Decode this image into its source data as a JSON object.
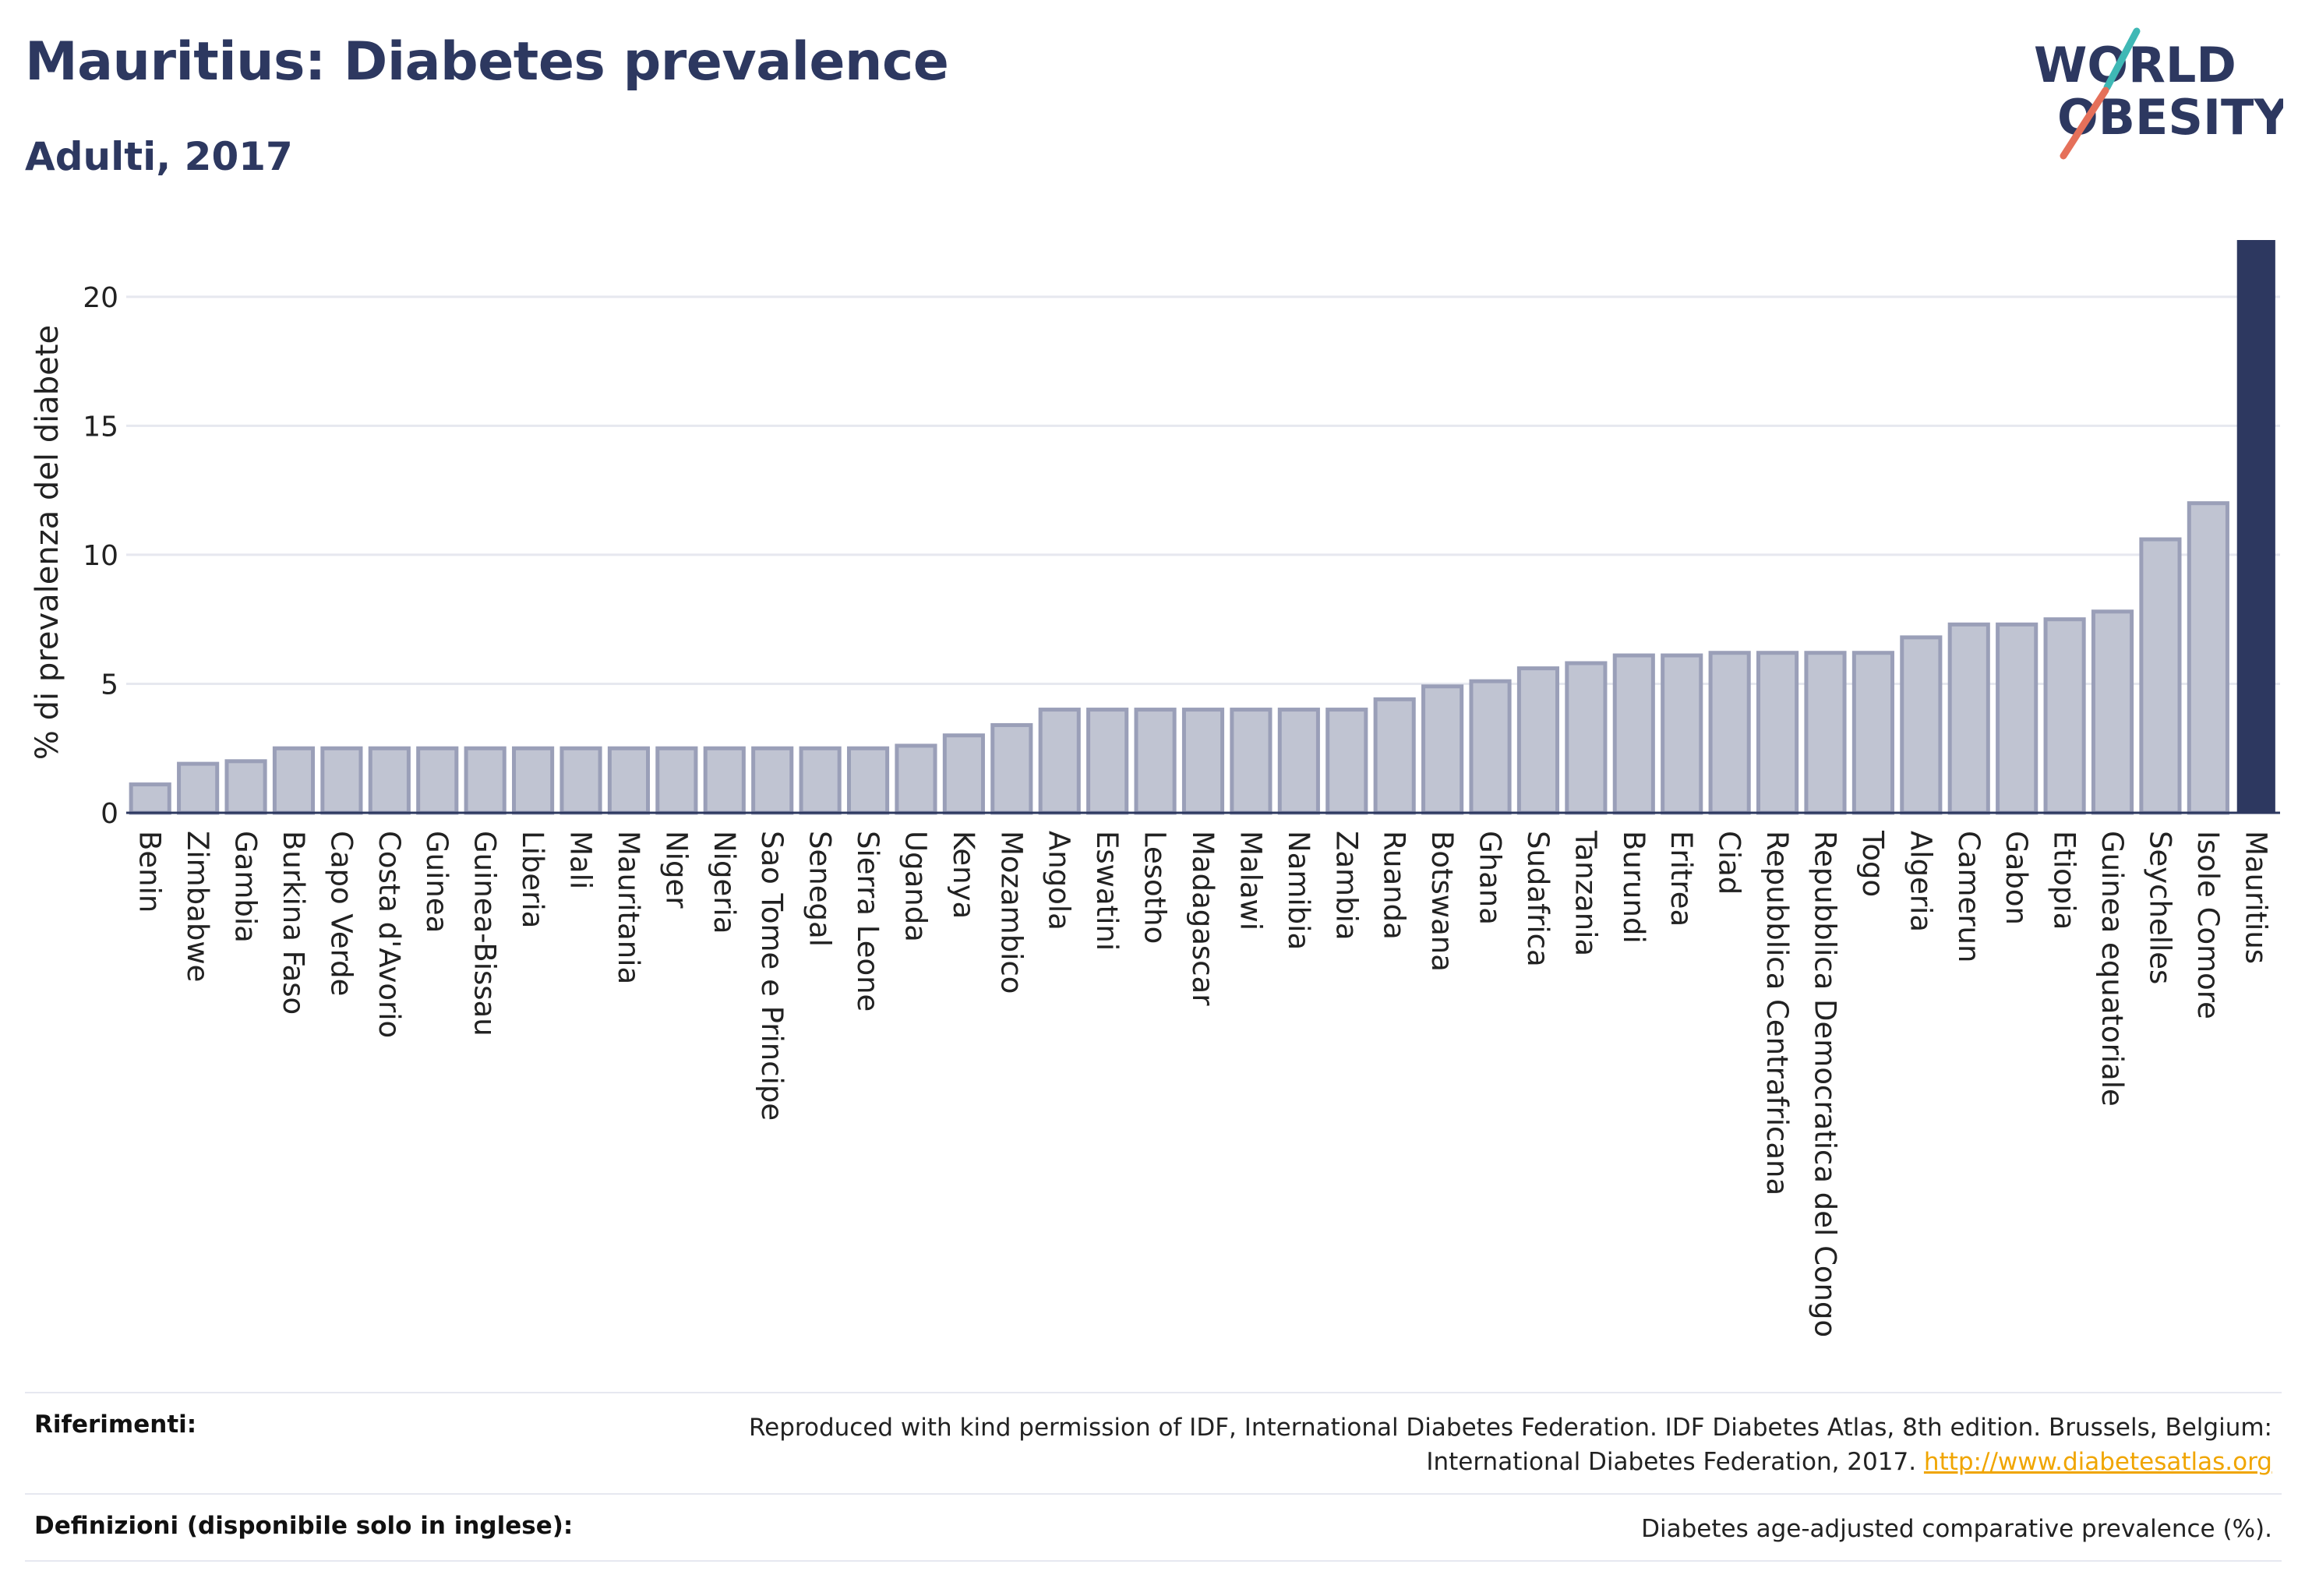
{
  "header": {
    "title": "Mauritius: Diabetes prevalence",
    "subtitle": "Adulti, 2017"
  },
  "logo": {
    "line1": "WORLD",
    "line2": "OBESITY",
    "colors": {
      "text": "#2d3860",
      "slash_teal": "#3fb8b5",
      "slash_coral": "#e5705a"
    }
  },
  "colors": {
    "highlight": "#2d3860",
    "bar_fill": "#c0c4d2",
    "bar_stroke": "#9a9fb8",
    "grid": "#e6e8ef"
  },
  "chart_data": {
    "type": "bar",
    "ylabel": "% di prevalenza del diabete",
    "ylim": [
      0,
      22.2
    ],
    "yticks": [
      0,
      5,
      10,
      15,
      20
    ],
    "grid": true,
    "highlight": "Mauritius",
    "categories": [
      "Benin",
      "Zimbabwe",
      "Gambia",
      "Burkina Faso",
      "Capo Verde",
      "Costa d'Avorio",
      "Guinea",
      "Guinea-Bissau",
      "Liberia",
      "Mali",
      "Mauritania",
      "Niger",
      "Nigeria",
      "Sao Tome e Principe",
      "Senegal",
      "Sierra Leone",
      "Uganda",
      "Kenya",
      "Mozambico",
      "Angola",
      "Eswatini",
      "Lesotho",
      "Madagascar",
      "Malawi",
      "Namibia",
      "Zambia",
      "Ruanda",
      "Botswana",
      "Ghana",
      "Sudafrica",
      "Tanzania",
      "Burundi",
      "Eritrea",
      "Ciad",
      "Repubblica Centrafricana",
      "Repubblica Democratica del Congo",
      "Togo",
      "Algeria",
      "Camerun",
      "Gabon",
      "Etiopia",
      "Guinea equatoriale",
      "Seychelles",
      "Isole Comore",
      "Mauritius"
    ],
    "values": [
      1.1,
      1.9,
      2.0,
      2.5,
      2.5,
      2.5,
      2.5,
      2.5,
      2.5,
      2.5,
      2.5,
      2.5,
      2.5,
      2.5,
      2.5,
      2.5,
      2.6,
      3.0,
      3.4,
      4.0,
      4.0,
      4.0,
      4.0,
      4.0,
      4.0,
      4.0,
      4.4,
      4.9,
      5.1,
      5.6,
      5.8,
      6.1,
      6.1,
      6.2,
      6.2,
      6.2,
      6.2,
      6.8,
      7.3,
      7.3,
      7.5,
      7.8,
      10.6,
      12.0,
      22.2
    ]
  },
  "footer": {
    "references_label": "Riferimenti:",
    "references_text": "Reproduced with kind permission of IDF, International Diabetes Federation. IDF Diabetes Atlas, 8th edition. Brussels, Belgium: International Diabetes Federation, 2017.",
    "references_link": "http://www.diabetesatlas.org",
    "definitions_label": "Definizioni (disponibile solo in inglese):",
    "definitions_text": "Diabetes age-adjusted comparative prevalence (%)."
  }
}
